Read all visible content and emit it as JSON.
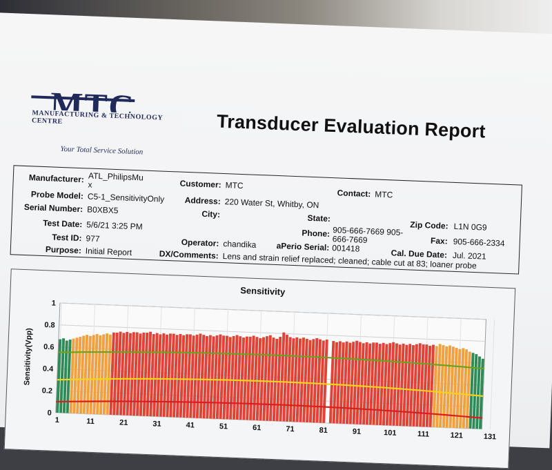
{
  "logo": {
    "mark": "MTC",
    "company": "MANUFACTURING & TECHNOLOGY CENTRE",
    "tagline": "Your Total Service Solution"
  },
  "report": {
    "title": "Transducer Evaluation Report"
  },
  "info": {
    "manufacturer": {
      "label": "Manufacturer:",
      "value_line1": "ATL_PhilipsMu",
      "value_line2": "x"
    },
    "probe_model": {
      "label": "Probe Model:",
      "value": "C5-1_SensitivityOnly"
    },
    "serial_number": {
      "label": "Serial Number:",
      "value": "B0XBX5"
    },
    "test_date": {
      "label": "Test Date:",
      "value": "5/6/21 3:25 PM"
    },
    "test_id": {
      "label": "Test ID:",
      "value": "977"
    },
    "purpose": {
      "label": "Purpose:",
      "value": "Initial Report"
    },
    "customer": {
      "label": "Customer:",
      "value": "MTC"
    },
    "address": {
      "label": "Address:",
      "value": "220 Water St, Whitby, ON"
    },
    "city": {
      "label": "City:",
      "value": ""
    },
    "operator": {
      "label": "Operator:",
      "value": "chandika"
    },
    "dx_comments": {
      "label": "DX/Comments:",
      "value": "Lens and strain relief replaced; cleaned; cable cut at 83; loaner probe"
    },
    "contact": {
      "label": "Contact:",
      "value": "MTC"
    },
    "state": {
      "label": "State:",
      "value": ""
    },
    "phone": {
      "label": "Phone:",
      "value_line1": "905-666-7669 905-",
      "value_line2": "666-7669"
    },
    "aperio_serial": {
      "label": "aPerio Serial:",
      "value": "001418"
    },
    "zip_code": {
      "label": "Zip Code:",
      "value": "L1N 0G9"
    },
    "fax": {
      "label": "Fax:",
      "value": "905-666-2334"
    },
    "cal_due_date": {
      "label": "Cal. Due Date:",
      "value": "Jul. 2021"
    }
  },
  "chart_data": {
    "type": "bar",
    "title": "Sensitivity",
    "ylabel": "Sensitivity(Vpp)",
    "xlabel": "",
    "ylim": [
      0,
      1
    ],
    "yticks": [
      "0",
      "0.2",
      "0.4",
      "0.6",
      "0.8",
      "1"
    ],
    "xticks": [
      "1",
      "11",
      "21",
      "31",
      "41",
      "51",
      "61",
      "71",
      "81",
      "91",
      "101",
      "111",
      "121",
      "131"
    ],
    "element_count": 128,
    "colors": {
      "green": "#2e8b57",
      "orange": "#f0a040",
      "red": "#e04236",
      "dead": "#f4f5f7",
      "line_green": "#6aa321",
      "line_yellow": "#f2d21b",
      "line_red": "#d81e1e"
    },
    "green_elements": [
      1,
      2,
      3,
      4,
      125,
      126,
      127,
      128
    ],
    "orange_elements": [
      5,
      6,
      7,
      8,
      9,
      10,
      11,
      12,
      13,
      14,
      15,
      16,
      114,
      115,
      116,
      117,
      118,
      119,
      120,
      121,
      122,
      123,
      124
    ],
    "dead_elements": [
      82
    ],
    "reference_lines": [
      {
        "name": "green",
        "edge": 0.55,
        "center": 0.6
      },
      {
        "name": "yellow",
        "edge": 0.3,
        "center": 0.36
      },
      {
        "name": "red",
        "edge": 0.1,
        "center": 0.15
      }
    ],
    "values": [
      0.67,
      0.68,
      0.66,
      0.67,
      0.68,
      0.69,
      0.7,
      0.71,
      0.72,
      0.71,
      0.72,
      0.73,
      0.72,
      0.73,
      0.74,
      0.73,
      0.75,
      0.75,
      0.76,
      0.75,
      0.76,
      0.75,
      0.76,
      0.76,
      0.75,
      0.76,
      0.76,
      0.77,
      0.75,
      0.76,
      0.75,
      0.76,
      0.75,
      0.76,
      0.76,
      0.75,
      0.76,
      0.75,
      0.76,
      0.76,
      0.75,
      0.76,
      0.77,
      0.76,
      0.75,
      0.76,
      0.75,
      0.76,
      0.77,
      0.76,
      0.76,
      0.75,
      0.76,
      0.77,
      0.76,
      0.75,
      0.76,
      0.76,
      0.77,
      0.76,
      0.75,
      0.76,
      0.77,
      0.78,
      0.76,
      0.75,
      0.77,
      0.81,
      0.79,
      0.77,
      0.76,
      0.77,
      0.76,
      0.77,
      0.76,
      0.75,
      0.76,
      0.77,
      0.76,
      0.75,
      0.76,
      0,
      0.75,
      0.74,
      0.75,
      0.74,
      0.75,
      0.74,
      0.75,
      0.76,
      0.75,
      0.74,
      0.75,
      0.74,
      0.75,
      0.75,
      0.74,
      0.75,
      0.74,
      0.75,
      0.76,
      0.75,
      0.74,
      0.75,
      0.74,
      0.75,
      0.74,
      0.75,
      0.76,
      0.75,
      0.75,
      0.74,
      0.75,
      0.74,
      0.76,
      0.75,
      0.74,
      0.75,
      0.74,
      0.73,
      0.72,
      0.73,
      0.72,
      0.7,
      0.69,
      0.68,
      0.66,
      0.64
    ]
  }
}
